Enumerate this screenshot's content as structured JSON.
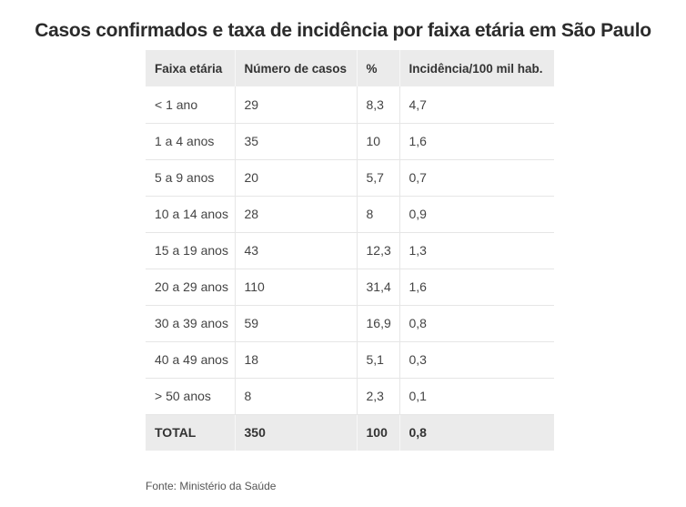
{
  "title": "Casos confirmados e taxa de incidência por faixa etária em São Paulo",
  "table": {
    "headers": [
      "Faixa etária",
      "Número de casos",
      "%",
      "Incidência/100 mil hab."
    ],
    "rows": [
      [
        "< 1 ano",
        "29",
        "8,3",
        "4,7"
      ],
      [
        "1 a 4 anos",
        "35",
        "10",
        "1,6"
      ],
      [
        "5 a 9 anos",
        "20",
        "5,7",
        "0,7"
      ],
      [
        "10 a 14 anos",
        "28",
        "8",
        "0,9"
      ],
      [
        "15 a 19 anos",
        "43",
        "12,3",
        "1,3"
      ],
      [
        "20 a 29 anos",
        "110",
        "31,4",
        "1,6"
      ],
      [
        "30 a 39 anos",
        "59",
        "16,9",
        "0,8"
      ],
      [
        "40 a 49 anos",
        "18",
        "5,1",
        "0,3"
      ],
      [
        "> 50 anos",
        "8",
        "2,3",
        "0,1"
      ]
    ],
    "total": [
      "TOTAL",
      "350",
      "100",
      "0,8"
    ]
  },
  "source": "Fonte: Ministério da Saúde",
  "colors": {
    "header_bg": "#ebebeb",
    "border": "#e6e6e6",
    "text": "#444444"
  }
}
